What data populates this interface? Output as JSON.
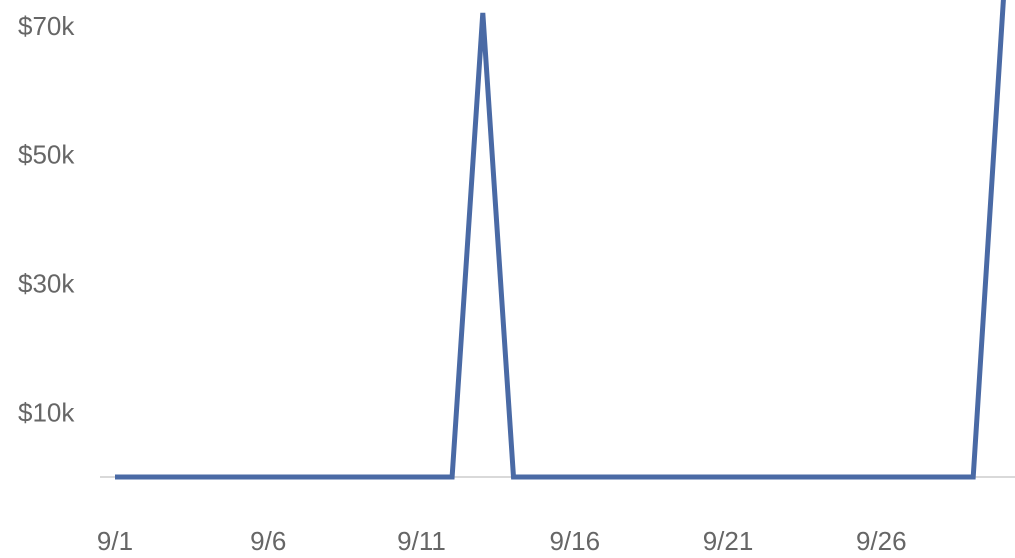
{
  "chart_data": {
    "type": "line",
    "title": "",
    "xlabel": "",
    "ylabel": "",
    "x": [
      "9/1",
      "9/2",
      "9/3",
      "9/4",
      "9/5",
      "9/6",
      "9/7",
      "9/8",
      "9/9",
      "9/10",
      "9/11",
      "9/12",
      "9/13",
      "9/14",
      "9/15",
      "9/16",
      "9/17",
      "9/18",
      "9/19",
      "9/20",
      "9/21",
      "9/22",
      "9/23",
      "9/24",
      "9/25",
      "9/26",
      "9/27",
      "9/28",
      "9/29",
      "9/30"
    ],
    "x_ticks": [
      "9/1",
      "9/6",
      "9/11",
      "9/16",
      "9/21",
      "9/26"
    ],
    "y_ticks": [
      "$10k",
      "$30k",
      "$50k",
      "$70k"
    ],
    "y_tick_values": [
      10000,
      30000,
      50000,
      70000
    ],
    "ylim": [
      0,
      74000
    ],
    "grid": false,
    "series": [
      {
        "color": "#4a6aa5",
        "values": [
          0,
          0,
          0,
          0,
          0,
          0,
          0,
          0,
          0,
          0,
          0,
          0,
          72000,
          0,
          0,
          0,
          0,
          0,
          0,
          0,
          0,
          0,
          0,
          0,
          0,
          0,
          0,
          0,
          0,
          75000
        ]
      }
    ]
  }
}
